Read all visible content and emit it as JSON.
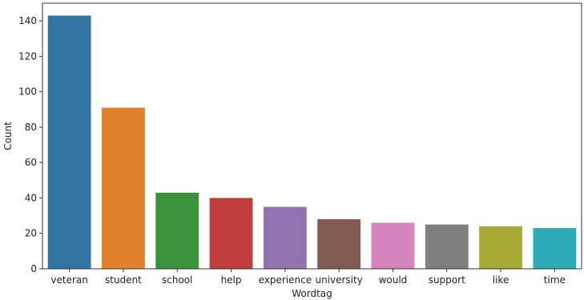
{
  "chart_data": {
    "type": "bar",
    "xlabel": "Wordtag",
    "ylabel": "Count",
    "categories": [
      "veteran",
      "student",
      "school",
      "help",
      "experience",
      "university",
      "would",
      "support",
      "like",
      "time"
    ],
    "values": [
      143,
      91,
      43,
      40,
      35,
      28,
      26,
      25,
      24,
      23
    ],
    "colors": [
      "#3274a1",
      "#e1812c",
      "#3a923a",
      "#c03d3e",
      "#9372b2",
      "#845b53",
      "#d684bd",
      "#7f7f7f",
      "#a9aa35",
      "#2eabb8"
    ],
    "ylim": [
      0,
      150
    ],
    "yticks": [
      0,
      20,
      40,
      60,
      80,
      100,
      120,
      140
    ],
    "grid": false,
    "legend": "none"
  }
}
